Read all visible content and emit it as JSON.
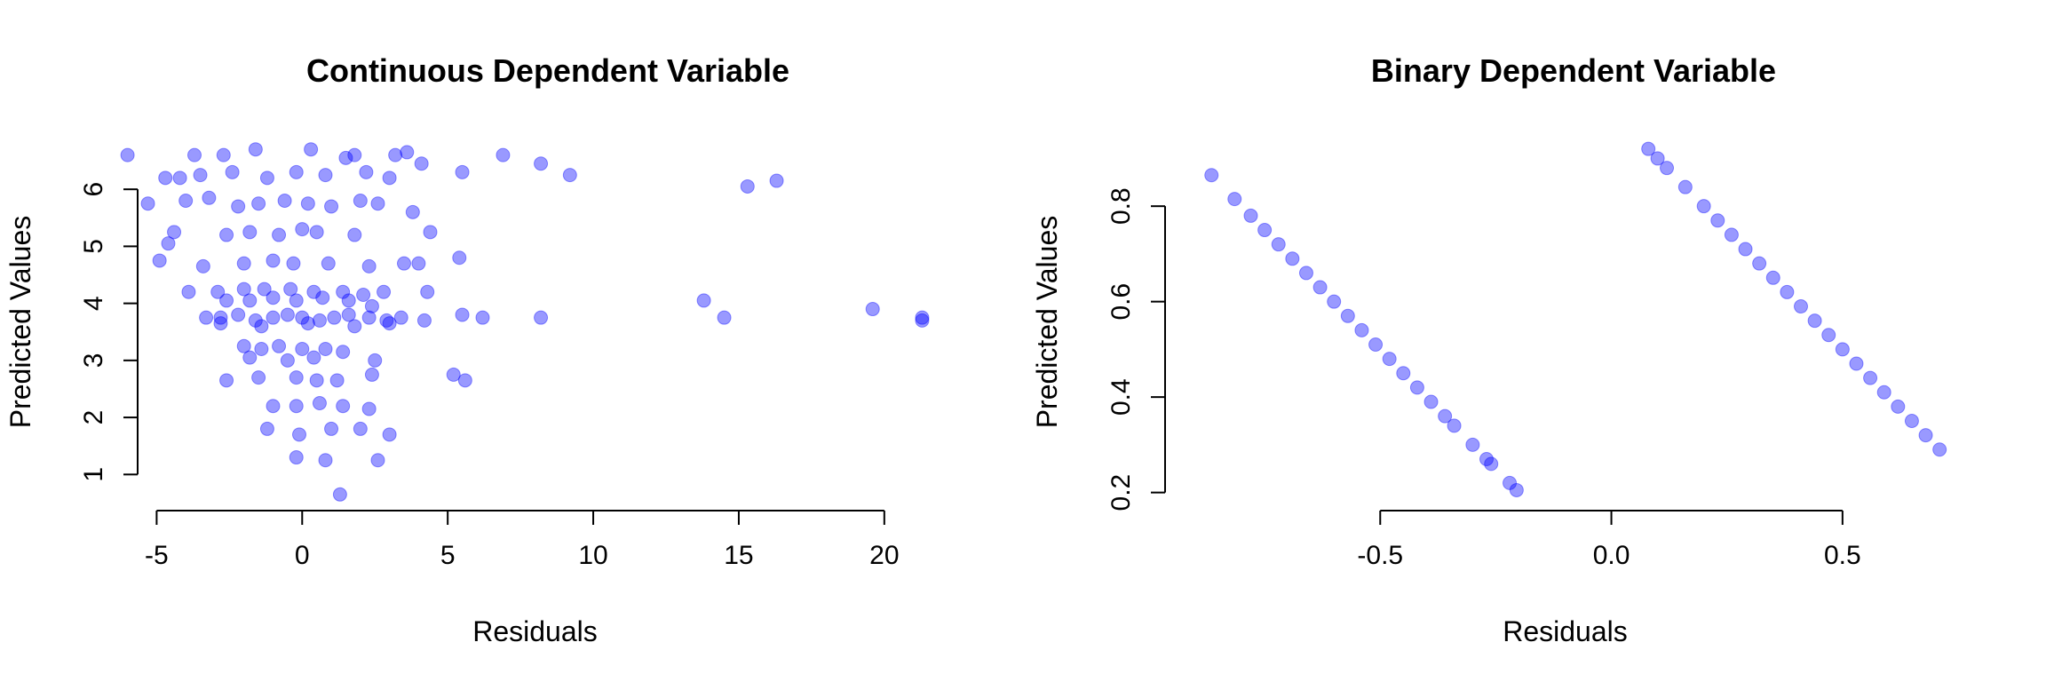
{
  "colors": {
    "point": "#0000ff",
    "axis": "#000000",
    "background": "#ffffff"
  },
  "chart_data": [
    {
      "type": "scatter",
      "title": "Continuous Dependent Variable",
      "xlabel": "Residuals",
      "ylabel": "Predicted Values",
      "xlim": [
        -5.5,
        21.5
      ],
      "ylim": [
        0.6,
        6.75
      ],
      "xticks": [
        -5,
        0,
        5,
        10,
        15,
        20
      ],
      "yticks": [
        1,
        2,
        3,
        4,
        5,
        6
      ],
      "grid": false,
      "legend": "none",
      "marker": {
        "color": "#0000ff",
        "opacity": 0.4
      },
      "points": [
        [
          -6.0,
          6.6
        ],
        [
          -5.3,
          5.75
        ],
        [
          -4.7,
          6.2
        ],
        [
          -3.7,
          6.6
        ],
        [
          -2.7,
          6.6
        ],
        [
          -1.6,
          6.7
        ],
        [
          0.3,
          6.7
        ],
        [
          1.5,
          6.55
        ],
        [
          1.8,
          6.6
        ],
        [
          3.2,
          6.6
        ],
        [
          3.6,
          6.65
        ],
        [
          6.9,
          6.6
        ],
        [
          8.2,
          6.45
        ],
        [
          9.2,
          6.25
        ],
        [
          15.3,
          6.05
        ],
        [
          16.3,
          6.15
        ],
        [
          -4.2,
          6.2
        ],
        [
          -3.5,
          6.25
        ],
        [
          -2.4,
          6.3
        ],
        [
          -1.2,
          6.2
        ],
        [
          -0.2,
          6.3
        ],
        [
          0.8,
          6.25
        ],
        [
          2.2,
          6.3
        ],
        [
          3.0,
          6.2
        ],
        [
          4.1,
          6.45
        ],
        [
          5.5,
          6.3
        ],
        [
          -4.0,
          5.8
        ],
        [
          -3.2,
          5.85
        ],
        [
          -2.2,
          5.7
        ],
        [
          -1.5,
          5.75
        ],
        [
          -0.6,
          5.8
        ],
        [
          0.2,
          5.75
        ],
        [
          1.0,
          5.7
        ],
        [
          2.0,
          5.8
        ],
        [
          2.6,
          5.75
        ],
        [
          3.8,
          5.6
        ],
        [
          -4.4,
          5.25
        ],
        [
          -4.6,
          5.05
        ],
        [
          -2.6,
          5.2
        ],
        [
          -1.8,
          5.25
        ],
        [
          -0.8,
          5.2
        ],
        [
          0.0,
          5.3
        ],
        [
          0.5,
          5.25
        ],
        [
          1.8,
          5.2
        ],
        [
          4.4,
          5.25
        ],
        [
          -4.9,
          4.75
        ],
        [
          -3.4,
          4.65
        ],
        [
          -2.0,
          4.7
        ],
        [
          -1.0,
          4.75
        ],
        [
          -0.3,
          4.7
        ],
        [
          0.9,
          4.7
        ],
        [
          2.3,
          4.65
        ],
        [
          3.5,
          4.7
        ],
        [
          4.0,
          4.7
        ],
        [
          5.4,
          4.8
        ],
        [
          -3.9,
          4.2
        ],
        [
          -2.9,
          4.2
        ],
        [
          -2.0,
          4.25
        ],
        [
          -1.3,
          4.25
        ],
        [
          -0.4,
          4.25
        ],
        [
          0.4,
          4.2
        ],
        [
          1.4,
          4.2
        ],
        [
          2.1,
          4.15
        ],
        [
          2.8,
          4.2
        ],
        [
          4.3,
          4.2
        ],
        [
          13.8,
          4.05
        ],
        [
          -2.6,
          4.05
        ],
        [
          -1.8,
          4.05
        ],
        [
          -1.0,
          4.1
        ],
        [
          -0.2,
          4.05
        ],
        [
          0.7,
          4.1
        ],
        [
          1.6,
          4.05
        ],
        [
          2.4,
          3.95
        ],
        [
          -3.3,
          3.75
        ],
        [
          -2.8,
          3.75
        ],
        [
          -2.2,
          3.8
        ],
        [
          -1.6,
          3.7
        ],
        [
          -1.0,
          3.75
        ],
        [
          -0.5,
          3.8
        ],
        [
          0.0,
          3.75
        ],
        [
          0.6,
          3.7
        ],
        [
          1.1,
          3.75
        ],
        [
          1.6,
          3.8
        ],
        [
          2.3,
          3.75
        ],
        [
          2.9,
          3.7
        ],
        [
          3.4,
          3.75
        ],
        [
          4.2,
          3.7
        ],
        [
          5.5,
          3.8
        ],
        [
          6.2,
          3.75
        ],
        [
          8.2,
          3.75
        ],
        [
          14.5,
          3.75
        ],
        [
          19.6,
          3.9
        ],
        [
          21.3,
          3.7
        ],
        [
          21.3,
          3.75
        ],
        [
          -2.8,
          3.65
        ],
        [
          -1.4,
          3.6
        ],
        [
          0.2,
          3.65
        ],
        [
          1.8,
          3.6
        ],
        [
          3.0,
          3.65
        ],
        [
          -2.0,
          3.25
        ],
        [
          -1.4,
          3.2
        ],
        [
          -0.8,
          3.25
        ],
        [
          0.0,
          3.2
        ],
        [
          0.8,
          3.2
        ],
        [
          1.4,
          3.15
        ],
        [
          -1.8,
          3.05
        ],
        [
          -0.5,
          3.0
        ],
        [
          0.4,
          3.05
        ],
        [
          2.5,
          3.0
        ],
        [
          -2.6,
          2.65
        ],
        [
          -1.5,
          2.7
        ],
        [
          -0.2,
          2.7
        ],
        [
          0.5,
          2.65
        ],
        [
          1.2,
          2.65
        ],
        [
          2.4,
          2.75
        ],
        [
          5.2,
          2.75
        ],
        [
          5.6,
          2.65
        ],
        [
          -1.0,
          2.2
        ],
        [
          -0.2,
          2.2
        ],
        [
          0.6,
          2.25
        ],
        [
          1.4,
          2.2
        ],
        [
          2.3,
          2.15
        ],
        [
          -1.2,
          1.8
        ],
        [
          -0.1,
          1.7
        ],
        [
          1.0,
          1.8
        ],
        [
          2.0,
          1.8
        ],
        [
          3.0,
          1.7
        ],
        [
          -0.2,
          1.3
        ],
        [
          0.8,
          1.25
        ],
        [
          2.6,
          1.25
        ],
        [
          1.3,
          0.65
        ]
      ]
    },
    {
      "type": "scatter",
      "title": "Binary Dependent Variable",
      "xlabel": "Residuals",
      "ylabel": "Predicted Values",
      "xlim": [
        -0.95,
        0.75
      ],
      "ylim": [
        0.19,
        0.925
      ],
      "xticks": [
        -0.5,
        0.0,
        0.5
      ],
      "yticks": [
        0.2,
        0.4,
        0.6,
        0.8
      ],
      "grid": false,
      "legend": "none",
      "marker": {
        "color": "#0000ff",
        "opacity": 0.4
      },
      "points": [
        [
          -0.865,
          0.865
        ],
        [
          -0.815,
          0.815
        ],
        [
          -0.78,
          0.78
        ],
        [
          -0.75,
          0.75
        ],
        [
          -0.72,
          0.72
        ],
        [
          -0.69,
          0.69
        ],
        [
          -0.66,
          0.66
        ],
        [
          -0.63,
          0.63
        ],
        [
          -0.6,
          0.6
        ],
        [
          -0.57,
          0.57
        ],
        [
          -0.54,
          0.54
        ],
        [
          -0.51,
          0.51
        ],
        [
          -0.48,
          0.48
        ],
        [
          -0.45,
          0.45
        ],
        [
          -0.42,
          0.42
        ],
        [
          -0.39,
          0.39
        ],
        [
          -0.36,
          0.36
        ],
        [
          -0.34,
          0.34
        ],
        [
          -0.3,
          0.3
        ],
        [
          -0.27,
          0.27
        ],
        [
          -0.26,
          0.26
        ],
        [
          -0.22,
          0.22
        ],
        [
          -0.205,
          0.205
        ],
        [
          0.08,
          0.92
        ],
        [
          0.1,
          0.9
        ],
        [
          0.12,
          0.88
        ],
        [
          0.16,
          0.84
        ],
        [
          0.2,
          0.8
        ],
        [
          0.23,
          0.77
        ],
        [
          0.26,
          0.74
        ],
        [
          0.29,
          0.71
        ],
        [
          0.32,
          0.68
        ],
        [
          0.35,
          0.65
        ],
        [
          0.38,
          0.62
        ],
        [
          0.41,
          0.59
        ],
        [
          0.44,
          0.56
        ],
        [
          0.47,
          0.53
        ],
        [
          0.5,
          0.5
        ],
        [
          0.53,
          0.47
        ],
        [
          0.56,
          0.44
        ],
        [
          0.59,
          0.41
        ],
        [
          0.62,
          0.38
        ],
        [
          0.65,
          0.35
        ],
        [
          0.68,
          0.32
        ],
        [
          0.71,
          0.29
        ]
      ]
    }
  ]
}
